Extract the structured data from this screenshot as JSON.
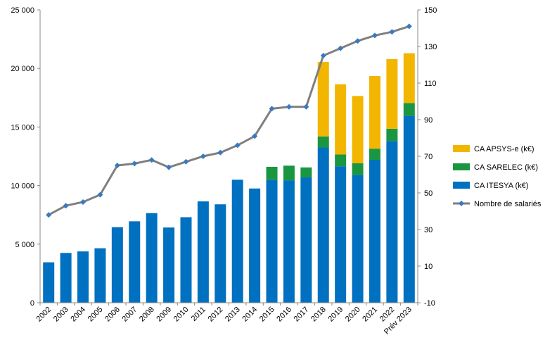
{
  "chart_data": {
    "type": "bar",
    "stacked": true,
    "categories": [
      "2002",
      "2003",
      "2004",
      "2005",
      "2006",
      "2007",
      "2008",
      "2009",
      "2010",
      "2011",
      "2012",
      "2013",
      "2014",
      "2015",
      "2016",
      "2017",
      "2018",
      "2019",
      "2020",
      "2021",
      "2022",
      "Prév 2023"
    ],
    "series": [
      {
        "name": "CA ITESYA (k€)",
        "color": "#0070C0",
        "values": [
          3450,
          4250,
          4380,
          4650,
          6450,
          6950,
          7650,
          6420,
          7300,
          8650,
          8400,
          10500,
          9750,
          10500,
          10450,
          10700,
          13250,
          11650,
          10900,
          12200,
          13800,
          15950
        ]
      },
      {
        "name": "CA SARELEC (k€)",
        "color": "#1A9641",
        "values": [
          0,
          0,
          0,
          0,
          0,
          0,
          0,
          0,
          0,
          0,
          0,
          0,
          0,
          1100,
          1250,
          850,
          950,
          1000,
          1000,
          950,
          1050,
          1100
        ]
      },
      {
        "name": "CA APSYS-e (k€)",
        "color": "#F2B600",
        "values": [
          0,
          0,
          0,
          0,
          0,
          0,
          0,
          0,
          0,
          0,
          0,
          0,
          0,
          0,
          0,
          0,
          6350,
          6000,
          5750,
          6200,
          5950,
          4250
        ]
      }
    ],
    "line_series": {
      "name": "Nombre de salariés",
      "color": "#7F7F7F",
      "marker_color": "#3A78C2",
      "axis": "right",
      "values": [
        38,
        43,
        45,
        49,
        65,
        66,
        68,
        64,
        67,
        70,
        72,
        76,
        81,
        96,
        97,
        97,
        125,
        129,
        133,
        136,
        138,
        141
      ]
    },
    "y_left": {
      "min": 0,
      "max": 25000,
      "ticks": [
        0,
        5000,
        10000,
        15000,
        20000,
        25000
      ],
      "tick_labels": [
        "0",
        "5 000",
        "10 000",
        "15 000",
        "20 000",
        "25 000"
      ]
    },
    "y_right": {
      "min": -10,
      "max": 150,
      "ticks": [
        -10,
        10,
        30,
        50,
        70,
        90,
        110,
        130,
        150
      ],
      "tick_labels": [
        "-10",
        "10",
        "30",
        "50",
        "70",
        "90",
        "110",
        "130",
        "150"
      ]
    },
    "legend": {
      "placement": "right",
      "entries": [
        {
          "label": "CA APSYS-e  (k€)",
          "kind": "box",
          "color": "#F2B600"
        },
        {
          "label": "CA SARELEC  (k€)",
          "kind": "box",
          "color": "#1A9641"
        },
        {
          "label": "CA ITESYA  (k€)",
          "kind": "box",
          "color": "#0070C0"
        },
        {
          "label": "Nombre de salariés",
          "kind": "line",
          "color": "#7F7F7F",
          "marker_color": "#3A78C2"
        }
      ]
    },
    "grid": false
  }
}
